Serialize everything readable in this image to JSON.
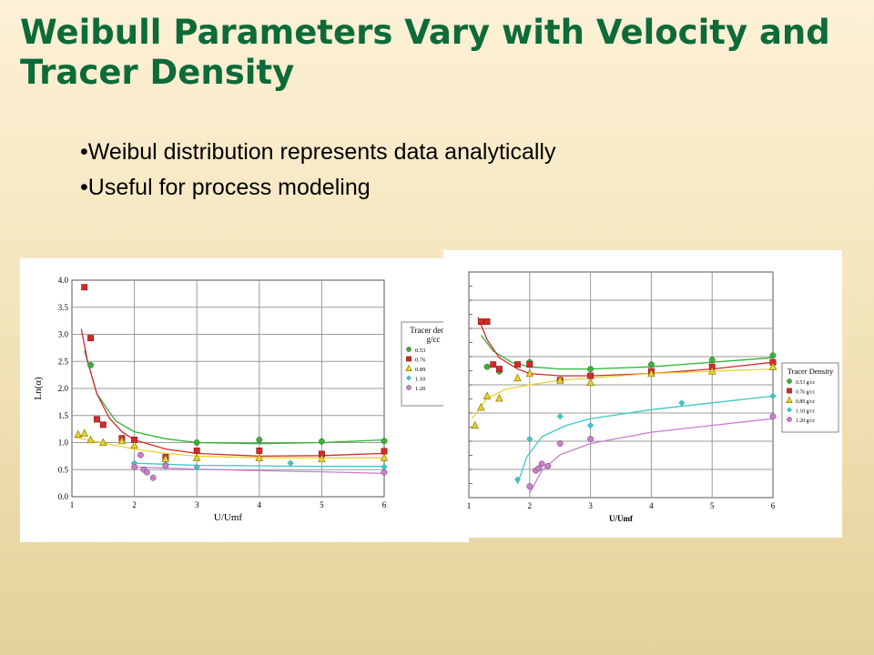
{
  "slide": {
    "title": "Weibull Parameters Vary with Velocity and Tracer Density",
    "bullets": [
      "Weibul distribution represents data analytically",
      "Useful for process modeling"
    ]
  },
  "chart_data": [
    {
      "type": "scatter",
      "xlabel": "U/Umf",
      "ylabel": "Ln(α)",
      "xlim": [
        1,
        6
      ],
      "ylim": [
        0,
        4
      ],
      "xticks": [
        "1",
        "2",
        "3",
        "4",
        "5",
        "6"
      ],
      "yticks": [
        "0.0",
        "0.5",
        "1.0",
        "1.5",
        "2.0",
        "2.5",
        "3.0",
        "3.5",
        "4.0"
      ],
      "grid": true,
      "legend": {
        "title": "Tracer density g/cc",
        "placement": "right"
      },
      "series": [
        {
          "name": "0.53",
          "marker": "circle",
          "color": "#33b533",
          "points": [
            [
              1.3,
              2.43
            ],
            [
              2,
              1.05
            ],
            [
              3,
              1.0
            ],
            [
              4,
              1.05
            ],
            [
              5,
              1.02
            ],
            [
              6,
              1.03
            ]
          ],
          "fit": [
            [
              1.2,
              2.7
            ],
            [
              1.4,
              1.9
            ],
            [
              1.7,
              1.4
            ],
            [
              2,
              1.2
            ],
            [
              2.5,
              1.07
            ],
            [
              3,
              1.0
            ],
            [
              4,
              0.98
            ],
            [
              5,
              1.0
            ],
            [
              6,
              1.05
            ]
          ]
        },
        {
          "name": "0.76",
          "marker": "square",
          "color": "#d42a2a",
          "points": [
            [
              1.2,
              3.87
            ],
            [
              1.3,
              2.93
            ],
            [
              1.4,
              1.43
            ],
            [
              1.5,
              1.33
            ],
            [
              1.8,
              1.08
            ],
            [
              2,
              1.05
            ],
            [
              2.5,
              0.73
            ],
            [
              3,
              0.85
            ],
            [
              4,
              0.85
            ],
            [
              5,
              0.79
            ],
            [
              6,
              0.84
            ]
          ],
          "fit": [
            [
              1.15,
              3.1
            ],
            [
              1.25,
              2.5
            ],
            [
              1.4,
              1.9
            ],
            [
              1.6,
              1.45
            ],
            [
              1.8,
              1.2
            ],
            [
              2,
              1.05
            ],
            [
              2.5,
              0.88
            ],
            [
              3,
              0.8
            ],
            [
              4,
              0.75
            ],
            [
              5,
              0.76
            ],
            [
              6,
              0.8
            ]
          ]
        },
        {
          "name": "0.89",
          "marker": "triangle",
          "color": "#e8d232",
          "points": [
            [
              1.1,
              1.15
            ],
            [
              1.2,
              1.17
            ],
            [
              1.3,
              1.05
            ],
            [
              1.5,
              1.0
            ],
            [
              1.8,
              1.03
            ],
            [
              2,
              0.95
            ],
            [
              2.5,
              0.7
            ],
            [
              3,
              0.72
            ],
            [
              4,
              0.72
            ],
            [
              5,
              0.7
            ],
            [
              6,
              0.72
            ]
          ],
          "fit": [
            [
              1.05,
              1.1
            ],
            [
              1.3,
              1.04
            ],
            [
              1.6,
              0.97
            ],
            [
              2,
              0.88
            ],
            [
              2.5,
              0.8
            ],
            [
              3,
              0.75
            ],
            [
              4,
              0.72
            ],
            [
              5,
              0.72
            ],
            [
              6,
              0.72
            ]
          ]
        },
        {
          "name": "1.10",
          "marker": "diamond",
          "color": "#3cc8c8",
          "points": [
            [
              2,
              0.62
            ],
            [
              2.5,
              0.6
            ],
            [
              3,
              0.55
            ],
            [
              4.5,
              0.62
            ],
            [
              6,
              0.55
            ]
          ],
          "fit": [
            [
              1.95,
              0.62
            ],
            [
              2.5,
              0.6
            ],
            [
              3,
              0.58
            ],
            [
              4,
              0.57
            ],
            [
              5,
              0.56
            ],
            [
              6,
              0.56
            ]
          ]
        },
        {
          "name": "1.20",
          "marker": "circle",
          "color": "#cc7bd1",
          "points": [
            [
              2,
              0.55
            ],
            [
              2.1,
              0.77
            ],
            [
              2.15,
              0.5
            ],
            [
              2.2,
              0.45
            ],
            [
              2.3,
              0.35
            ],
            [
              2.5,
              0.57
            ],
            [
              6,
              0.45
            ]
          ],
          "fit": [
            [
              2,
              0.55
            ],
            [
              2.5,
              0.53
            ],
            [
              3,
              0.51
            ],
            [
              4,
              0.48
            ],
            [
              5,
              0.46
            ],
            [
              6,
              0.43
            ]
          ]
        }
      ]
    },
    {
      "type": "scatter",
      "xlabel": "U/Umf",
      "xlim": [
        1,
        6
      ],
      "xticks": [
        "1",
        "2",
        "3",
        "4",
        "5",
        "6"
      ],
      "grid": true,
      "legend": {
        "title": "Tracer Density",
        "placement": "right"
      },
      "series": [
        {
          "name": "0.53 g/cc",
          "marker": "circle",
          "color": "#33b533",
          "points": [
            [
              1.3,
              0.58
            ],
            [
              1.5,
              0.56
            ],
            [
              2,
              0.6
            ],
            [
              3,
              0.57
            ],
            [
              4,
              0.59
            ],
            [
              5,
              0.61
            ],
            [
              6,
              0.63
            ]
          ],
          "fit": [
            [
              1.2,
              0.72
            ],
            [
              1.4,
              0.65
            ],
            [
              1.7,
              0.6
            ],
            [
              2,
              0.58
            ],
            [
              2.5,
              0.57
            ],
            [
              3,
              0.57
            ],
            [
              4,
              0.58
            ],
            [
              5,
              0.6
            ],
            [
              6,
              0.62
            ]
          ]
        },
        {
          "name": "0.76 g/cc",
          "marker": "square",
          "color": "#d42a2a",
          "points": [
            [
              1.2,
              0.78
            ],
            [
              1.3,
              0.78
            ],
            [
              1.4,
              0.59
            ],
            [
              1.5,
              0.57
            ],
            [
              1.8,
              0.59
            ],
            [
              2,
              0.59
            ],
            [
              2.5,
              0.52
            ],
            [
              3,
              0.54
            ],
            [
              4,
              0.56
            ],
            [
              5,
              0.58
            ],
            [
              6,
              0.6
            ]
          ],
          "fit": [
            [
              1.15,
              0.8
            ],
            [
              1.3,
              0.7
            ],
            [
              1.5,
              0.62
            ],
            [
              1.8,
              0.57
            ],
            [
              2,
              0.55
            ],
            [
              2.5,
              0.54
            ],
            [
              3,
              0.54
            ],
            [
              4,
              0.55
            ],
            [
              5,
              0.57
            ],
            [
              6,
              0.6
            ]
          ]
        },
        {
          "name": "0.89 g/cc",
          "marker": "triangle",
          "color": "#e8d232",
          "points": [
            [
              1.1,
              0.32
            ],
            [
              1.2,
              0.4
            ],
            [
              1.3,
              0.45
            ],
            [
              1.5,
              0.44
            ],
            [
              1.8,
              0.53
            ],
            [
              2,
              0.55
            ],
            [
              2.5,
              0.52
            ],
            [
              3,
              0.51
            ],
            [
              4,
              0.55
            ],
            [
              5,
              0.56
            ],
            [
              6,
              0.58
            ]
          ],
          "fit": [
            [
              1.05,
              0.35
            ],
            [
              1.3,
              0.44
            ],
            [
              1.6,
              0.48
            ],
            [
              2,
              0.5
            ],
            [
              2.5,
              0.52
            ],
            [
              3,
              0.53
            ],
            [
              4,
              0.55
            ],
            [
              5,
              0.56
            ],
            [
              6,
              0.57
            ]
          ]
        },
        {
          "name": "1.10 g/cc",
          "marker": "diamond",
          "color": "#3cc8c8",
          "points": [
            [
              1.8,
              0.08
            ],
            [
              2,
              0.26
            ],
            [
              2.5,
              0.36
            ],
            [
              3,
              0.32
            ],
            [
              4.5,
              0.42
            ],
            [
              6,
              0.45
            ]
          ],
          "fit": [
            [
              1.8,
              0.06
            ],
            [
              1.95,
              0.18
            ],
            [
              2.2,
              0.27
            ],
            [
              2.6,
              0.32
            ],
            [
              3,
              0.35
            ],
            [
              4,
              0.39
            ],
            [
              5,
              0.42
            ],
            [
              6,
              0.45
            ]
          ]
        },
        {
          "name": "1.20 g/cc",
          "marker": "circle",
          "color": "#cc7bd1",
          "points": [
            [
              2,
              0.05
            ],
            [
              2.1,
              0.12
            ],
            [
              2.15,
              0.13
            ],
            [
              2.2,
              0.15
            ],
            [
              2.3,
              0.14
            ],
            [
              2.5,
              0.24
            ],
            [
              3,
              0.26
            ],
            [
              6,
              0.36
            ]
          ],
          "fit": [
            [
              2,
              0.02
            ],
            [
              2.2,
              0.12
            ],
            [
              2.5,
              0.19
            ],
            [
              3,
              0.24
            ],
            [
              4,
              0.29
            ],
            [
              5,
              0.32
            ],
            [
              6,
              0.35
            ]
          ]
        }
      ]
    }
  ]
}
